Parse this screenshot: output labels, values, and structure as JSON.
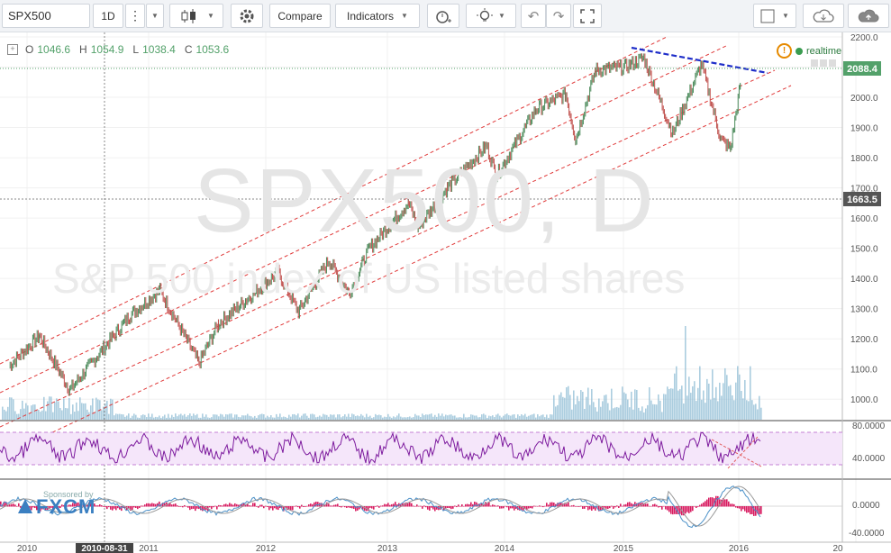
{
  "toolbar": {
    "symbol": "SPX500",
    "interval": "1D",
    "compare_label": "Compare",
    "indicators_label": "Indicators",
    "icons": [
      "more-icon",
      "chevron-down-icon",
      "candles-icon",
      "settings-icon",
      "alert-icon",
      "idea-icon",
      "undo-icon",
      "redo-icon",
      "fullscreen-icon",
      "layout-icon",
      "cloud-save-icon",
      "cloud-upload-icon"
    ]
  },
  "legend": {
    "o_label": "O",
    "o_value": "1046.6",
    "h_label": "H",
    "h_value": "1054.9",
    "l_label": "L",
    "l_value": "1038.4",
    "c_label": "C",
    "c_value": "1053.6",
    "realtime": "realtime"
  },
  "watermark": {
    "title": "SPX500, D",
    "subtitle": "S&P 500 index of US listed shares"
  },
  "price_axis": {
    "ticks": [
      "2200.0",
      "2100.0",
      "2000.0",
      "1900.0",
      "1800.0",
      "1700.0",
      "1600.0",
      "1500.0",
      "1400.0",
      "1300.0",
      "1200.0",
      "1100.0",
      "1000.0"
    ],
    "last_price": "2088.4",
    "crosshair_price": "1663.5",
    "last_color": "#53a16a"
  },
  "rsi_axis": {
    "ticks": [
      "80.0000",
      "40.0000"
    ]
  },
  "macd_axis": {
    "ticks": [
      "0.0000",
      "-40.0000"
    ]
  },
  "time_axis": {
    "labels": [
      "2010",
      "2011",
      "2012",
      "2013",
      "2014",
      "2015",
      "2016",
      "20"
    ],
    "crosshair_date": "2010-08-31"
  },
  "branding": {
    "sponsored": "Sponsored by",
    "logo": "FXCM"
  },
  "chart_data": {
    "type": "line",
    "title": "SPX500, D",
    "subtitle": "S&P 500 index of US listed shares",
    "x": [
      "2010-01",
      "2010-04",
      "2010-07",
      "2011-01",
      "2011-04",
      "2011-08",
      "2011-10",
      "2012-04",
      "2012-06",
      "2012-09",
      "2012-11",
      "2013-01",
      "2013-05",
      "2013-06",
      "2013-09",
      "2014-01",
      "2014-02",
      "2014-06",
      "2014-09",
      "2014-10",
      "2014-12",
      "2015-03",
      "2015-05",
      "2015-08",
      "2015-11",
      "2016-01",
      "2016-02",
      "2016-03"
    ],
    "series": [
      {
        "values": [
          1110,
          1210,
          1030,
          1280,
          1360,
          1120,
          1250,
          1420,
          1290,
          1460,
          1350,
          1500,
          1650,
          1570,
          1700,
          1840,
          1740,
          1960,
          2010,
          1860,
          2090,
          2100,
          2130,
          1880,
          2110,
          1860,
          1830,
          2040
        ]
      }
    ],
    "ylim": [
      950,
      2200
    ],
    "grid": true,
    "annotations": [
      "ascending channel (red dashed)",
      "descending resistance line (blue dashed)"
    ]
  }
}
